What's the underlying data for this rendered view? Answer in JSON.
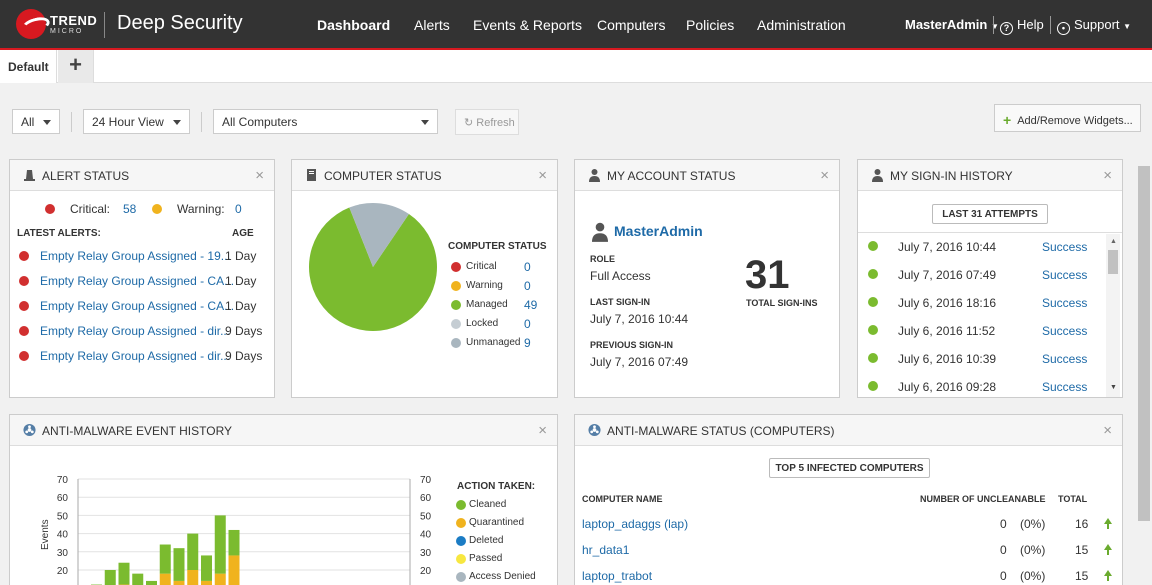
{
  "header": {
    "brand_line1": "TREND",
    "brand_line2": "MICRO",
    "product": "Deep Security",
    "nav": [
      "Dashboard",
      "Alerts",
      "Events & Reports",
      "Computers",
      "Policies",
      "Administration"
    ],
    "user": "MasterAdmin",
    "help": "Help",
    "support": "Support"
  },
  "tabs": {
    "default": "Default",
    "add": "+"
  },
  "toolbar": {
    "filter": "All",
    "view": "24 Hour View",
    "computers": "All Computers",
    "refresh": "Refresh",
    "add_remove": "Add/Remove Widgets..."
  },
  "alert_status": {
    "title": "ALERT STATUS",
    "critical_label": "Critical:",
    "critical_count": "58",
    "warning_label": "Warning:",
    "warning_count": "0",
    "latest_label": "LATEST ALERTS:",
    "age_label": "AGE",
    "alerts": [
      {
        "text": "Empty Relay Group Assigned - 19...",
        "age": "1 Day"
      },
      {
        "text": "Empty Relay Group Assigned - CA...",
        "age": "1 Day"
      },
      {
        "text": "Empty Relay Group Assigned - CA...",
        "age": "1 Day"
      },
      {
        "text": "Empty Relay Group Assigned - dir...",
        "age": "9 Days"
      },
      {
        "text": "Empty Relay Group Assigned - dir...",
        "age": "9 Days"
      }
    ]
  },
  "computer_status": {
    "title": "COMPUTER STATUS",
    "legend_title": "COMPUTER STATUS",
    "items": [
      {
        "label": "Critical",
        "count": "0",
        "color": "#d12f2f"
      },
      {
        "label": "Warning",
        "count": "0",
        "color": "#f0b31e"
      },
      {
        "label": "Managed",
        "count": "49",
        "color": "#7bbb2f"
      },
      {
        "label": "Locked",
        "count": "0",
        "color": "#c5cdd3"
      },
      {
        "label": "Unmanaged",
        "count": "9",
        "color": "#a9b6bf"
      }
    ]
  },
  "account_status": {
    "title": "MY ACCOUNT STATUS",
    "username": "MasterAdmin",
    "role_label": "ROLE",
    "role": "Full Access",
    "last_label": "LAST SIGN-IN",
    "last": "July 7, 2016 10:44",
    "prev_label": "PREVIOUS SIGN-IN",
    "prev": "July 7, 2016 07:49",
    "total": "31",
    "total_label": "TOTAL SIGN-INS"
  },
  "signin_history": {
    "title": "MY SIGN-IN HISTORY",
    "button": "LAST 31 ATTEMPTS",
    "rows": [
      {
        "date": "July 7, 2016 10:44",
        "result": "Success"
      },
      {
        "date": "July 7, 2016 07:49",
        "result": "Success"
      },
      {
        "date": "July 6, 2016 18:16",
        "result": "Success"
      },
      {
        "date": "July 6, 2016 11:52",
        "result": "Success"
      },
      {
        "date": "July 6, 2016 10:39",
        "result": "Success"
      },
      {
        "date": "July 6, 2016 09:28",
        "result": "Success"
      }
    ]
  },
  "antimalware_history": {
    "title": "ANTI-MALWARE EVENT HISTORY",
    "legend_title": "ACTION TAKEN:",
    "legend": [
      {
        "label": "Cleaned",
        "color": "#7bbb2f"
      },
      {
        "label": "Quarantined",
        "color": "#f0b31e"
      },
      {
        "label": "Deleted",
        "color": "#1b7cc4"
      },
      {
        "label": "Passed",
        "color": "#f7e740"
      },
      {
        "label": "Access Denied",
        "color": "#a9b6bf"
      }
    ]
  },
  "chart_data": {
    "type": "bar",
    "stacked": true,
    "ylabel": "Events",
    "ylim": [
      0,
      70
    ],
    "yticks": [
      "70",
      "60",
      "50",
      "40",
      "30",
      "20"
    ],
    "series": [
      {
        "name": "Deleted",
        "color": "#1b7cc4",
        "values": [
          0,
          0,
          0,
          0,
          0,
          0,
          0,
          0,
          0,
          0,
          8,
          0,
          0,
          0,
          0,
          0,
          0,
          0,
          0,
          0,
          0,
          0,
          0
        ]
      },
      {
        "name": "Quarantined",
        "color": "#f0b31e",
        "values": [
          8,
          10,
          12,
          8,
          6,
          18,
          14,
          20,
          14,
          18,
          20,
          4,
          0,
          0,
          0,
          0,
          0,
          0,
          0,
          0,
          0,
          0,
          0
        ]
      },
      {
        "name": "Cleaned",
        "color": "#7bbb2f",
        "values": [
          4,
          10,
          12,
          10,
          8,
          16,
          18,
          20,
          14,
          32,
          14,
          0,
          0,
          0,
          0,
          0,
          0,
          0,
          0,
          0,
          0,
          4,
          0
        ]
      }
    ],
    "x_offset": [
      1,
      2,
      3,
      4,
      5,
      6,
      7,
      8,
      9,
      10,
      11,
      12,
      13,
      14,
      15,
      16,
      17,
      18,
      19,
      20,
      21,
      22,
      23
    ]
  },
  "antimalware_status": {
    "title": "ANTI-MALWARE STATUS (COMPUTERS)",
    "button": "TOP 5 INFECTED COMPUTERS",
    "col_name": "COMPUTER NAME",
    "col_unclean": "NUMBER OF UNCLEANABLE",
    "col_total": "TOTAL",
    "rows": [
      {
        "name": "laptop_adaggs (lap)",
        "count": "0",
        "pct": "(0%)",
        "total": "16"
      },
      {
        "name": "hr_data1",
        "count": "0",
        "pct": "(0%)",
        "total": "15"
      },
      {
        "name": "laptop_trabot",
        "count": "0",
        "pct": "(0%)",
        "total": "15"
      }
    ]
  }
}
